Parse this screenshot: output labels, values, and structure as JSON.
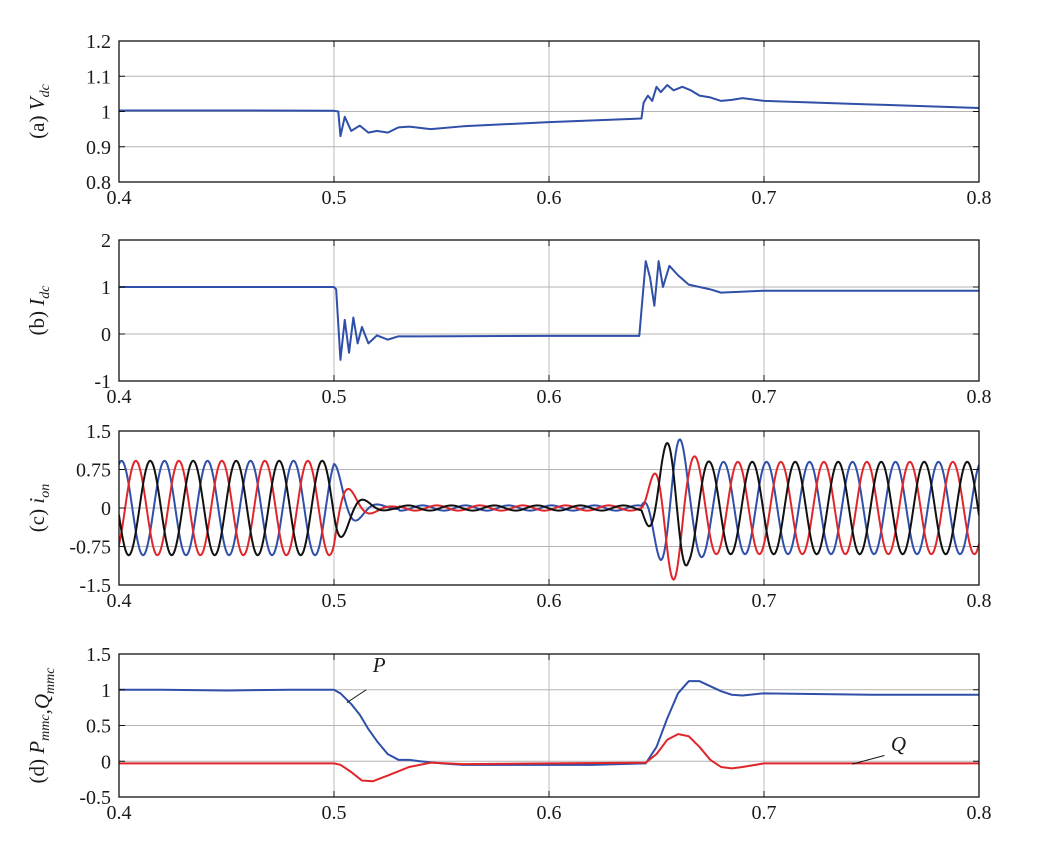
{
  "colors": {
    "blue": "#2f4fa8",
    "red": "#e0262b",
    "black": "#111111"
  },
  "chart_data": [
    {
      "type": "line",
      "ylabel_prefix": "(a) ",
      "ylabel_main": "V",
      "ylabel_sub": "dc",
      "xlim": [
        0.4,
        0.8
      ],
      "ylim": [
        0.8,
        1.2
      ],
      "xticks": [
        "0.4",
        "0.5",
        "0.6",
        "0.7",
        "0.8"
      ],
      "yticks": [
        {
          "value": 0.8,
          "label": "0.8"
        },
        {
          "value": 0.9,
          "label": "0.9"
        },
        {
          "value": 1.0,
          "label": "1"
        },
        {
          "value": 1.1,
          "label": "1.1"
        },
        {
          "value": 1.2,
          "label": "1.2"
        }
      ],
      "grid": true,
      "series": [
        {
          "color": "blue",
          "x": [
            0.4,
            0.45,
            0.5,
            0.502,
            0.503,
            0.505,
            0.508,
            0.512,
            0.516,
            0.52,
            0.525,
            0.53,
            0.535,
            0.545,
            0.56,
            0.6,
            0.643,
            0.644,
            0.646,
            0.648,
            0.65,
            0.652,
            0.655,
            0.658,
            0.662,
            0.666,
            0.67,
            0.675,
            0.68,
            0.685,
            0.69,
            0.7,
            0.75,
            0.8
          ],
          "y": [
            1.003,
            1.003,
            1.002,
            1.0,
            0.93,
            0.985,
            0.945,
            0.96,
            0.94,
            0.945,
            0.94,
            0.955,
            0.957,
            0.95,
            0.958,
            0.97,
            0.98,
            1.025,
            1.045,
            1.03,
            1.07,
            1.055,
            1.075,
            1.06,
            1.07,
            1.06,
            1.045,
            1.04,
            1.03,
            1.033,
            1.038,
            1.03,
            1.02,
            1.01
          ]
        }
      ]
    },
    {
      "type": "line",
      "ylabel_prefix": "(b) ",
      "ylabel_main": "I",
      "ylabel_sub": "dc",
      "xlim": [
        0.4,
        0.8
      ],
      "ylim": [
        -1,
        2
      ],
      "xticks": [
        "0.4",
        "0.5",
        "0.6",
        "0.7",
        "0.8"
      ],
      "yticks": [
        {
          "value": -1,
          "label": "-1"
        },
        {
          "value": 0,
          "label": "0"
        },
        {
          "value": 1,
          "label": "1"
        },
        {
          "value": 2,
          "label": "2"
        }
      ],
      "grid": true,
      "series": [
        {
          "color": "blue",
          "x": [
            0.4,
            0.45,
            0.5,
            0.501,
            0.502,
            0.503,
            0.505,
            0.507,
            0.509,
            0.511,
            0.513,
            0.516,
            0.52,
            0.525,
            0.53,
            0.54,
            0.6,
            0.642,
            0.643,
            0.645,
            0.647,
            0.649,
            0.651,
            0.653,
            0.656,
            0.66,
            0.665,
            0.67,
            0.675,
            0.68,
            0.7,
            0.8
          ],
          "y": [
            1.0,
            1.0,
            1.0,
            0.95,
            0.2,
            -0.55,
            0.3,
            -0.4,
            0.35,
            -0.2,
            0.15,
            -0.2,
            -0.03,
            -0.12,
            -0.05,
            -0.05,
            -0.04,
            -0.04,
            0.5,
            1.55,
            1.2,
            0.6,
            1.55,
            1.0,
            1.45,
            1.25,
            1.05,
            1.0,
            0.95,
            0.88,
            0.92,
            0.92
          ]
        }
      ]
    },
    {
      "type": "line",
      "ylabel_prefix": "(c) ",
      "ylabel_main": "i",
      "ylabel_sub": "on",
      "xlim": [
        0.4,
        0.8
      ],
      "ylim": [
        -1.5,
        1.5
      ],
      "xticks": [
        "0.4",
        "0.5",
        "0.6",
        "0.7",
        "0.8"
      ],
      "yticks": [
        {
          "value": -1.5,
          "label": "-1.5"
        },
        {
          "value": -0.75,
          "label": "-0.75"
        },
        {
          "value": 0,
          "label": "0"
        },
        {
          "value": 0.75,
          "label": "0.75"
        },
        {
          "value": 1.5,
          "label": "1.5"
        }
      ],
      "grid": true,
      "series": [
        {
          "color": "blue",
          "x": [],
          "y": []
        },
        {
          "color": "red",
          "x": [],
          "y": []
        },
        {
          "color": "black",
          "x": [],
          "y": []
        }
      ]
    },
    {
      "type": "line",
      "ylabel_prefix": "(d) ",
      "ylabel_parts": [
        {
          "main": "P",
          "sub": "mmc"
        },
        {
          "main": ",",
          "sub": ""
        },
        {
          "main": "Q",
          "sub": "mmc"
        }
      ],
      "xlim": [
        0.4,
        0.8
      ],
      "ylim": [
        -0.5,
        1.5
      ],
      "xticks": [
        "0.4",
        "0.5",
        "0.6",
        "0.7",
        "0.8"
      ],
      "yticks": [
        {
          "value": -0.5,
          "label": "-0.5"
        },
        {
          "value": 0,
          "label": "0"
        },
        {
          "value": 0.5,
          "label": "0.5"
        },
        {
          "value": 1,
          "label": "1"
        },
        {
          "value": 1.5,
          "label": "1.5"
        }
      ],
      "grid": true,
      "series": [
        {
          "name": "P",
          "color": "blue",
          "x": [
            0.4,
            0.42,
            0.45,
            0.48,
            0.5,
            0.503,
            0.508,
            0.512,
            0.516,
            0.52,
            0.525,
            0.53,
            0.535,
            0.54,
            0.55,
            0.56,
            0.58,
            0.6,
            0.62,
            0.645,
            0.65,
            0.655,
            0.66,
            0.665,
            0.67,
            0.675,
            0.68,
            0.685,
            0.69,
            0.7,
            0.75,
            0.8
          ],
          "y": [
            1.0,
            1.0,
            0.99,
            1.0,
            1.0,
            0.95,
            0.8,
            0.65,
            0.45,
            0.28,
            0.1,
            0.02,
            0.02,
            0.0,
            -0.03,
            -0.05,
            -0.05,
            -0.05,
            -0.05,
            -0.03,
            0.2,
            0.6,
            0.95,
            1.12,
            1.12,
            1.05,
            0.98,
            0.93,
            0.92,
            0.95,
            0.93,
            0.93
          ]
        },
        {
          "name": "Q",
          "color": "red",
          "x": [
            0.4,
            0.45,
            0.5,
            0.503,
            0.508,
            0.513,
            0.518,
            0.525,
            0.535,
            0.545,
            0.56,
            0.6,
            0.645,
            0.65,
            0.655,
            0.66,
            0.665,
            0.67,
            0.675,
            0.68,
            0.685,
            0.69,
            0.7,
            0.75,
            0.8
          ],
          "y": [
            -0.03,
            -0.03,
            -0.03,
            -0.05,
            -0.15,
            -0.27,
            -0.28,
            -0.2,
            -0.08,
            -0.02,
            -0.04,
            -0.03,
            -0.02,
            0.1,
            0.3,
            0.38,
            0.35,
            0.2,
            0.02,
            -0.08,
            -0.1,
            -0.08,
            -0.03,
            -0.03,
            -0.03
          ]
        }
      ],
      "annotations": [
        {
          "text": "P",
          "x": 0.518,
          "y": 1.25,
          "lx1": 0.506,
          "ly1": 0.82,
          "lx2": 0.515,
          "ly2": 1.0
        },
        {
          "text": "Q",
          "x": 0.759,
          "y": 0.14,
          "lx1": 0.741,
          "ly1": -0.04,
          "lx2": 0.756,
          "ly2": 0.08
        }
      ]
    }
  ]
}
